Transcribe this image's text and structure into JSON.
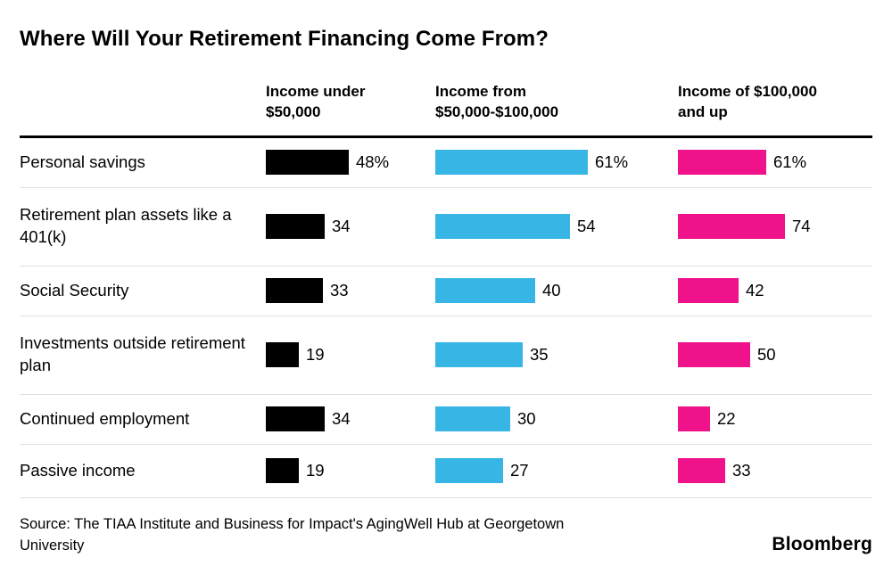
{
  "title": "Where Will Your Retirement Financing Come From?",
  "source": {
    "line1": "Source: The TIAA Institute and Business for Impact's AgingWell Hub at Georgetown",
    "line2": "University"
  },
  "brand": "Bloomberg",
  "chart_data": {
    "type": "bar",
    "orientation": "horizontal",
    "title": "Where Will Your Retirement Financing Come From?",
    "unit": "%",
    "grid": false,
    "legend_position": "column-headers-top",
    "categories": [
      "Personal savings",
      "Retirement plan assets like a 401(k)",
      "Social Security",
      "Investments outside retirement plan",
      "Continued employment",
      "Passive income"
    ],
    "series": [
      {
        "name": "Income under $50,000",
        "header_line1": "Income under",
        "header_line2": "$50,000",
        "color": "#000000",
        "values": [
          48,
          34,
          33,
          19,
          34,
          19
        ],
        "value_labels": [
          "48%",
          "34",
          "33",
          "19",
          "34",
          "19"
        ]
      },
      {
        "name": "Income from $50,000-$100,000",
        "header_line1": "Income from",
        "header_line2": "$50,000-$100,000",
        "color": "#37b6e6",
        "values": [
          61,
          54,
          40,
          35,
          30,
          27
        ],
        "value_labels": [
          "61%",
          "54",
          "40",
          "35",
          "30",
          "27"
        ]
      },
      {
        "name": "Income of $100,000 and up",
        "header_line1": "Income of $100,000",
        "header_line2": "and up",
        "color": "#f0128b",
        "values": [
          61,
          74,
          42,
          50,
          22,
          33
        ],
        "value_labels": [
          "61%",
          "74",
          "42",
          "50",
          "22",
          "33"
        ]
      }
    ]
  }
}
